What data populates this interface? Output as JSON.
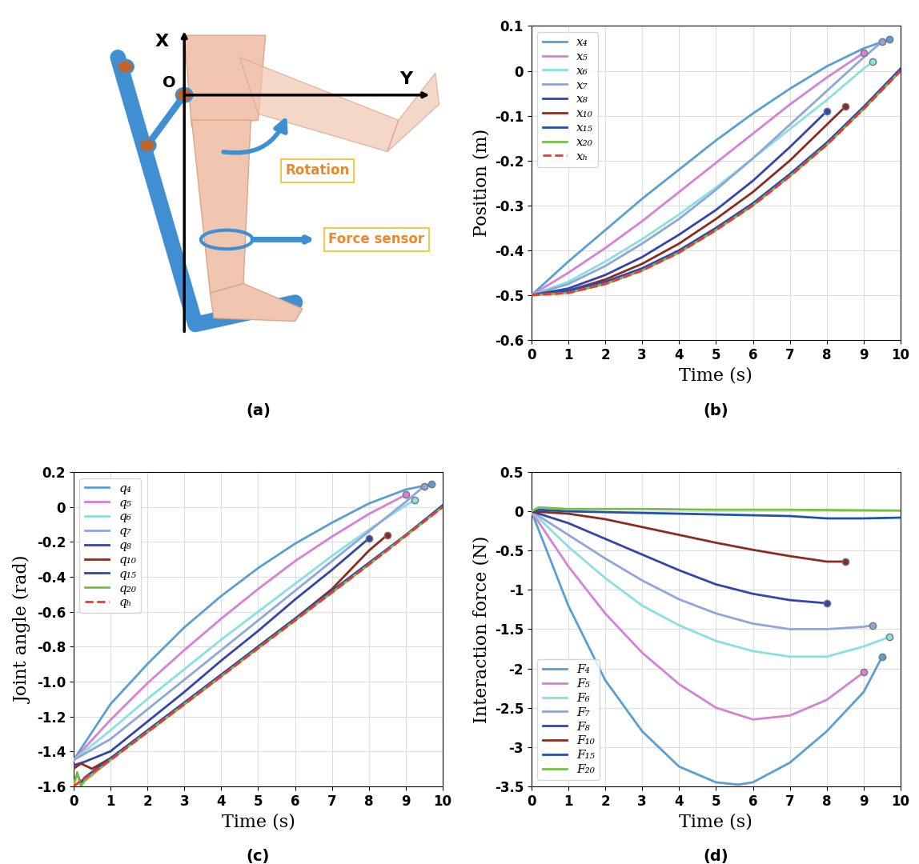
{
  "diagram": {
    "axis_x": "X",
    "axis_y": "Y",
    "origin": "O",
    "labels": [
      "Rotation",
      "Force sensor"
    ],
    "caption": "(a)"
  },
  "chart_data": [
    {
      "type": "line",
      "caption": "(b)",
      "xlabel": "Time (s)",
      "ylabel": "Position (m)",
      "xlim": [
        0,
        10
      ],
      "xticks": [
        0,
        1,
        2,
        3,
        4,
        5,
        6,
        7,
        8,
        9,
        10
      ],
      "ylim": [
        -0.6,
        0.1
      ],
      "yticks": [
        -0.6,
        -0.5,
        -0.4,
        -0.3,
        -0.2,
        -0.1,
        0,
        0.1
      ],
      "grid": true,
      "legend": "upper left",
      "series": [
        {
          "name": "x₄",
          "color": "#5a9fd4",
          "x": [
            0,
            1,
            2,
            3,
            4,
            5,
            6,
            7,
            8,
            9,
            9.7
          ],
          "values": [
            -0.5,
            -0.425,
            -0.355,
            -0.285,
            -0.22,
            -0.155,
            -0.095,
            -0.04,
            0.01,
            0.05,
            0.07
          ]
        },
        {
          "name": "x₅",
          "color": "#d680d6",
          "x": [
            0,
            1,
            2,
            3,
            4,
            5,
            6,
            7,
            8,
            9
          ],
          "values": [
            -0.5,
            -0.45,
            -0.395,
            -0.335,
            -0.27,
            -0.205,
            -0.14,
            -0.075,
            -0.015,
            0.04
          ]
        },
        {
          "name": "x₆",
          "color": "#88e0e0",
          "x": [
            0,
            1,
            2,
            3,
            4,
            5,
            6,
            7,
            8,
            9,
            9.25
          ],
          "values": [
            -0.5,
            -0.47,
            -0.425,
            -0.375,
            -0.32,
            -0.26,
            -0.195,
            -0.13,
            -0.065,
            0.005,
            0.02
          ]
        },
        {
          "name": "x₇",
          "color": "#8fa6dc",
          "x": [
            0,
            1,
            2,
            3,
            4,
            5,
            6,
            7,
            8,
            9,
            9.5
          ],
          "values": [
            -0.5,
            -0.475,
            -0.435,
            -0.385,
            -0.33,
            -0.265,
            -0.195,
            -0.12,
            -0.045,
            0.03,
            0.065
          ]
        },
        {
          "name": "x₈",
          "color": "#3344aa",
          "x": [
            0,
            1,
            2,
            3,
            4,
            5,
            6,
            7,
            8
          ],
          "values": [
            -0.5,
            -0.485,
            -0.455,
            -0.415,
            -0.365,
            -0.31,
            -0.245,
            -0.17,
            -0.09
          ]
        },
        {
          "name": "x₁₀",
          "color": "#8b2b1f",
          "x": [
            0,
            1,
            2,
            3,
            4,
            5,
            6,
            7,
            8,
            8.5
          ],
          "values": [
            -0.5,
            -0.49,
            -0.465,
            -0.43,
            -0.385,
            -0.33,
            -0.27,
            -0.2,
            -0.12,
            -0.08
          ]
        },
        {
          "name": "x₁₅",
          "color": "#2050b0",
          "x": [
            0,
            1,
            2,
            3,
            4,
            5,
            6,
            7,
            8,
            9,
            10
          ],
          "values": [
            -0.5,
            -0.49,
            -0.47,
            -0.44,
            -0.4,
            -0.35,
            -0.295,
            -0.23,
            -0.16,
            -0.08,
            0.005
          ]
        },
        {
          "name": "x₂₀",
          "color": "#77c043",
          "x": [
            0,
            1,
            2,
            3,
            4,
            5,
            6,
            7,
            8,
            9,
            10
          ],
          "values": [
            -0.5,
            -0.495,
            -0.475,
            -0.445,
            -0.405,
            -0.355,
            -0.3,
            -0.235,
            -0.165,
            -0.085,
            0.0
          ]
        },
        {
          "name": "xₕ",
          "color": "#ff3030",
          "line_style": "dashed",
          "x": [
            0,
            1,
            2,
            3,
            4,
            5,
            6,
            7,
            8,
            9,
            10
          ],
          "values": [
            -0.5,
            -0.495,
            -0.475,
            -0.445,
            -0.405,
            -0.355,
            -0.3,
            -0.235,
            -0.165,
            -0.085,
            0.0
          ]
        }
      ]
    },
    {
      "type": "line",
      "caption": "(c)",
      "xlabel": "Time (s)",
      "ylabel": "Joint angle (rad)",
      "xlim": [
        0,
        10
      ],
      "xticks": [
        0,
        1,
        2,
        3,
        4,
        5,
        6,
        7,
        8,
        9,
        10
      ],
      "ylim": [
        -1.6,
        0.2
      ],
      "yticks": [
        -1.6,
        -1.4,
        -1.2,
        -1.0,
        -0.8,
        -0.6,
        -0.4,
        -0.2,
        0,
        0.2
      ],
      "grid": true,
      "legend": "upper left",
      "series": [
        {
          "name": "q₄",
          "color": "#5a9fd4",
          "x": [
            0,
            1,
            2,
            3,
            4,
            5,
            6,
            7,
            8,
            9,
            9.7
          ],
          "values": [
            -1.45,
            -1.13,
            -0.9,
            -0.69,
            -0.51,
            -0.35,
            -0.21,
            -0.09,
            0.02,
            0.1,
            0.13
          ]
        },
        {
          "name": "q₅",
          "color": "#d680d6",
          "x": [
            0,
            1,
            2,
            3,
            4,
            5,
            6,
            7,
            8,
            9
          ],
          "values": [
            -1.45,
            -1.22,
            -1.01,
            -0.82,
            -0.64,
            -0.47,
            -0.31,
            -0.17,
            -0.04,
            0.07
          ]
        },
        {
          "name": "q₆",
          "color": "#88e0e0",
          "x": [
            0,
            1,
            2,
            3,
            4,
            5,
            6,
            7,
            8,
            9,
            9.25
          ],
          "values": [
            -1.45,
            -1.28,
            -1.1,
            -0.93,
            -0.76,
            -0.6,
            -0.44,
            -0.28,
            -0.13,
            0.01,
            0.04
          ]
        },
        {
          "name": "q₇",
          "color": "#8fa6dc",
          "x": [
            0,
            1,
            2,
            3,
            4,
            5,
            6,
            7,
            8,
            9,
            9.5
          ],
          "values": [
            -1.45,
            -1.33,
            -1.16,
            -0.99,
            -0.82,
            -0.65,
            -0.48,
            -0.31,
            -0.14,
            0.03,
            0.12
          ]
        },
        {
          "name": "q₈",
          "color": "#3344aa",
          "x": [
            0,
            0.3,
            1,
            2,
            3,
            4,
            5,
            6,
            7,
            8
          ],
          "values": [
            -1.48,
            -1.46,
            -1.4,
            -1.23,
            -1.06,
            -0.88,
            -0.71,
            -0.53,
            -0.36,
            -0.18
          ]
        },
        {
          "name": "q₁₀",
          "color": "#8b2b1f",
          "x": [
            0,
            0.2,
            0.5,
            1,
            2,
            3,
            4,
            5,
            6,
            7,
            8,
            8.5
          ],
          "values": [
            -1.5,
            -1.47,
            -1.5,
            -1.44,
            -1.29,
            -1.13,
            -0.97,
            -0.8,
            -0.64,
            -0.47,
            -0.25,
            -0.16
          ]
        },
        {
          "name": "q₁₅",
          "color": "#2050b0",
          "x": [
            0,
            0.1,
            0.2,
            0.3,
            1,
            2,
            3,
            4,
            5,
            6,
            7,
            8,
            9,
            10
          ],
          "values": [
            -1.58,
            -1.53,
            -1.58,
            -1.55,
            -1.44,
            -1.28,
            -1.12,
            -0.96,
            -0.8,
            -0.64,
            -0.48,
            -0.32,
            -0.16,
            0.01
          ]
        },
        {
          "name": "q₂₀",
          "color": "#77c043",
          "x": [
            0,
            0.1,
            0.2,
            0.3,
            1,
            2,
            3,
            4,
            5,
            6,
            7,
            8,
            9,
            10
          ],
          "values": [
            -1.6,
            -1.52,
            -1.6,
            -1.57,
            -1.45,
            -1.29,
            -1.13,
            -0.97,
            -0.81,
            -0.65,
            -0.49,
            -0.33,
            -0.165,
            0.0
          ]
        },
        {
          "name": "qₕ",
          "color": "#ff3030",
          "line_style": "dashed",
          "x": [
            0,
            1,
            2,
            3,
            4,
            5,
            6,
            7,
            8,
            9,
            10
          ],
          "values": [
            -1.6,
            -1.45,
            -1.29,
            -1.13,
            -0.97,
            -0.81,
            -0.65,
            -0.49,
            -0.33,
            -0.165,
            0.0
          ]
        }
      ]
    },
    {
      "type": "line",
      "caption": "(d)",
      "xlabel": "Time (s)",
      "ylabel": "Interaction force (N)",
      "xlim": [
        0,
        10
      ],
      "xticks": [
        0,
        1,
        2,
        3,
        4,
        5,
        6,
        7,
        8,
        9,
        10
      ],
      "ylim": [
        -3.5,
        0.5
      ],
      "yticks": [
        -3.5,
        -3,
        -2.5,
        -2,
        -1.5,
        -1,
        -0.5,
        0,
        0.5
      ],
      "grid": true,
      "legend": "lower left",
      "series": [
        {
          "name": "F₄",
          "color": "#5a9fd4",
          "x": [
            0,
            1,
            2,
            3,
            4,
            5,
            5.6,
            6,
            7,
            8,
            9,
            9.5
          ],
          "values": [
            0,
            -1.2,
            -2.15,
            -2.8,
            -3.25,
            -3.45,
            -3.48,
            -3.45,
            -3.2,
            -2.8,
            -2.3,
            -1.85
          ]
        },
        {
          "name": "F₅",
          "color": "#d680d6",
          "x": [
            0,
            1,
            2,
            3,
            4,
            5,
            6,
            7,
            8,
            9
          ],
          "values": [
            0,
            -0.7,
            -1.3,
            -1.8,
            -2.2,
            -2.5,
            -2.65,
            -2.6,
            -2.4,
            -2.05
          ]
        },
        {
          "name": "F₆",
          "color": "#88e0e0",
          "x": [
            0,
            1,
            2,
            3,
            4,
            5,
            6,
            7,
            8,
            9,
            9.7
          ],
          "values": [
            0,
            -0.45,
            -0.85,
            -1.2,
            -1.45,
            -1.65,
            -1.78,
            -1.85,
            -1.85,
            -1.72,
            -1.6
          ]
        },
        {
          "name": "F₇",
          "color": "#8fa6dc",
          "x": [
            0,
            1,
            2,
            3,
            4,
            5,
            6,
            7,
            8,
            9,
            9.25
          ],
          "values": [
            0,
            -0.3,
            -0.6,
            -0.88,
            -1.12,
            -1.3,
            -1.43,
            -1.5,
            -1.5,
            -1.47,
            -1.45
          ]
        },
        {
          "name": "F₈",
          "color": "#3344aa",
          "x": [
            0,
            1,
            2,
            3,
            4,
            5,
            6,
            7,
            8
          ],
          "values": [
            0,
            -0.15,
            -0.35,
            -0.55,
            -0.75,
            -0.93,
            -1.05,
            -1.13,
            -1.17
          ]
        },
        {
          "name": "F₁₀",
          "color": "#8b2b1f",
          "x": [
            0,
            1,
            2,
            3,
            4,
            5,
            6,
            7,
            8,
            8.5
          ],
          "values": [
            0,
            -0.03,
            -0.1,
            -0.2,
            -0.3,
            -0.4,
            -0.49,
            -0.57,
            -0.64,
            -0.64
          ]
        },
        {
          "name": "F₁₅",
          "color": "#2050b0",
          "x": [
            0,
            0.2,
            1,
            2,
            3,
            4,
            5,
            6,
            7,
            8,
            9,
            10
          ],
          "values": [
            0,
            0.02,
            0,
            -0.01,
            -0.02,
            -0.03,
            -0.04,
            -0.05,
            -0.06,
            -0.09,
            -0.09,
            -0.08
          ]
        },
        {
          "name": "F₂₀",
          "color": "#77c043",
          "x": [
            0,
            0.2,
            1,
            3,
            5,
            7,
            10
          ],
          "values": [
            0,
            0.05,
            0.03,
            0.03,
            0.02,
            0.02,
            0.01
          ]
        }
      ]
    }
  ]
}
